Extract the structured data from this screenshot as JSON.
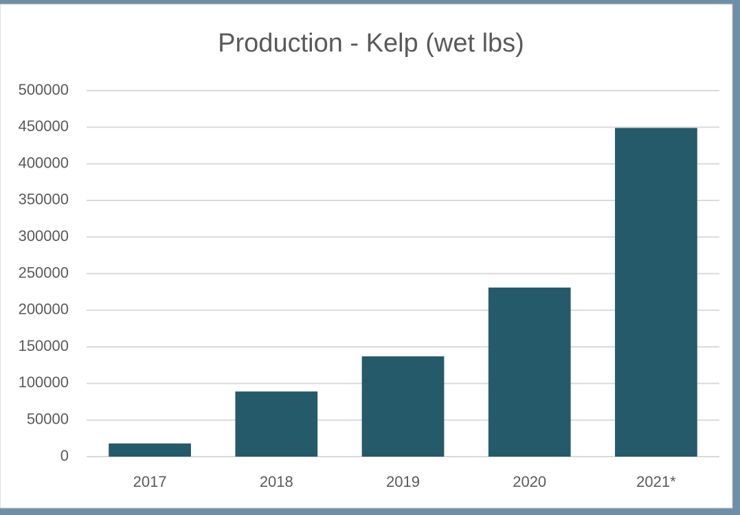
{
  "chart_data": {
    "type": "bar",
    "title": "Production - Kelp (wet lbs)",
    "categories": [
      "2017",
      "2018",
      "2019",
      "2020",
      "2021*"
    ],
    "values": [
      18000,
      89000,
      137000,
      231000,
      449000
    ],
    "color": "#245a69",
    "ylim": [
      0,
      500000
    ],
    "yticks": [
      0,
      50000,
      100000,
      150000,
      200000,
      250000,
      300000,
      350000,
      400000,
      450000,
      500000
    ],
    "grid": true
  }
}
